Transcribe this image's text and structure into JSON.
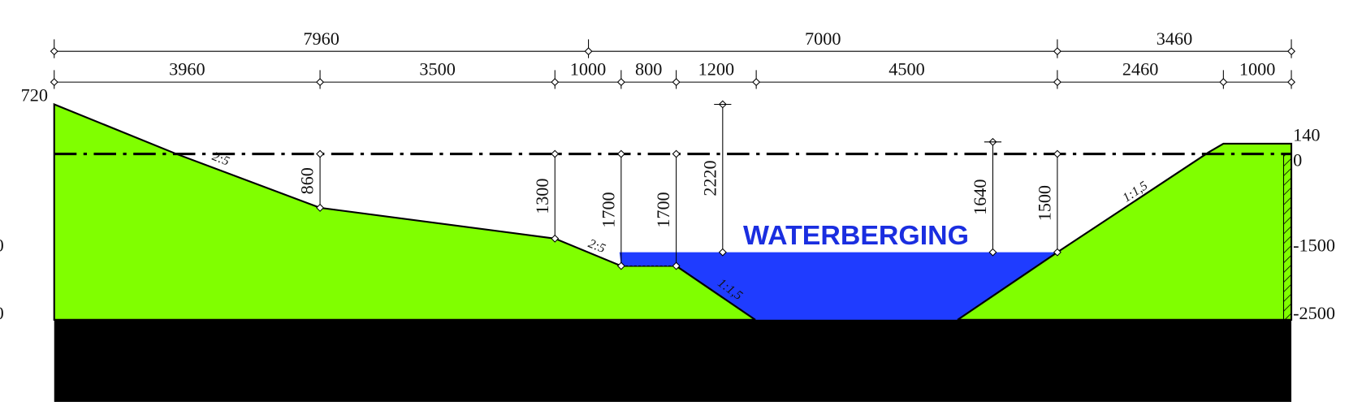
{
  "top_left_level": 720,
  "dimensions_top": [
    7960,
    7000,
    3460
  ],
  "dimensions_bottom": [
    3960,
    3500,
    1000,
    800,
    1200,
    4500,
    2460,
    1000
  ],
  "heights": [
    860,
    1300,
    1700,
    1700,
    2220,
    1640,
    1500
  ],
  "levels": [
    140,
    0,
    -1500,
    -2500
  ],
  "left_edge_labels": [
    "0",
    "0"
  ],
  "slopes": [
    "2:5",
    "2:5",
    "1:1,5",
    "1:1,5"
  ],
  "area_label": "WATERBERGING"
}
